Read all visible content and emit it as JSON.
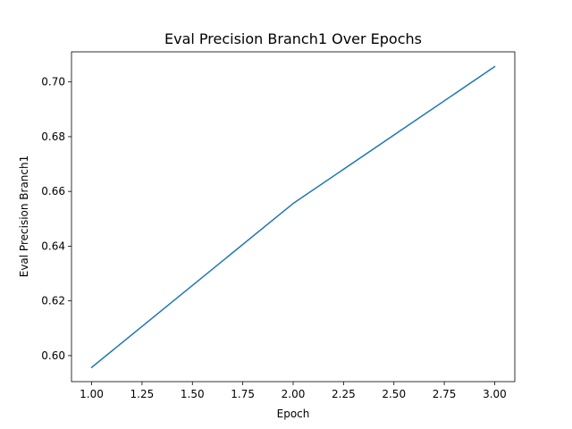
{
  "chart_data": {
    "type": "line",
    "title": "Eval Precision Branch1 Over Epochs",
    "xlabel": "Epoch",
    "ylabel": "Eval Precision Branch1",
    "xlim": [
      0.9,
      3.1
    ],
    "ylim": [
      0.5905,
      0.711
    ],
    "x_ticks": [
      "1.00",
      "1.25",
      "1.50",
      "1.75",
      "2.00",
      "2.25",
      "2.50",
      "2.75",
      "3.00"
    ],
    "y_ticks": [
      "0.60",
      "0.62",
      "0.64",
      "0.66",
      "0.68",
      "0.70"
    ],
    "grid": false,
    "legend": "none",
    "series": [
      {
        "x": [
          1,
          2,
          3
        ],
        "y": [
          0.5957,
          0.6556,
          0.7056
        ],
        "color": "#1f77b4"
      }
    ]
  }
}
